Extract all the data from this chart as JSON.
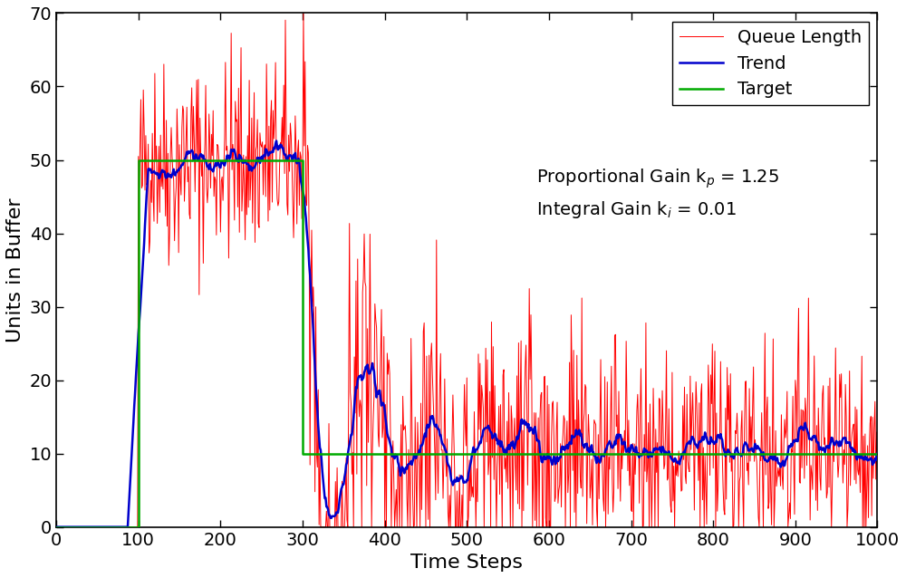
{
  "xlabel": "Time Steps",
  "ylabel": "Units in Buffer",
  "xlim": [
    0,
    1000
  ],
  "ylim": [
    0,
    70
  ],
  "xticks": [
    0,
    100,
    200,
    300,
    400,
    500,
    600,
    700,
    800,
    900,
    1000
  ],
  "yticks": [
    0,
    10,
    20,
    30,
    40,
    50,
    60,
    70
  ],
  "phase1_start": 100,
  "phase1_end": 300,
  "phase1_target": 50,
  "phase2_target": 10,
  "n_steps": 1001,
  "queue_color": "#ff0000",
  "trend_color": "#0000cc",
  "target_color": "#00aa00",
  "legend_labels": [
    "Queue Length",
    "Trend",
    "Target"
  ],
  "ann_text1": "Proportional Gain k",
  "ann_text2": "Integral Gain k",
  "figsize": [
    10.0,
    6.38
  ],
  "dpi": 100,
  "lw_queue": 0.7,
  "lw_trend": 1.8,
  "lw_target": 1.8,
  "fs_labels": 16,
  "fs_ticks": 14,
  "fs_legend": 14,
  "fs_ann": 14
}
